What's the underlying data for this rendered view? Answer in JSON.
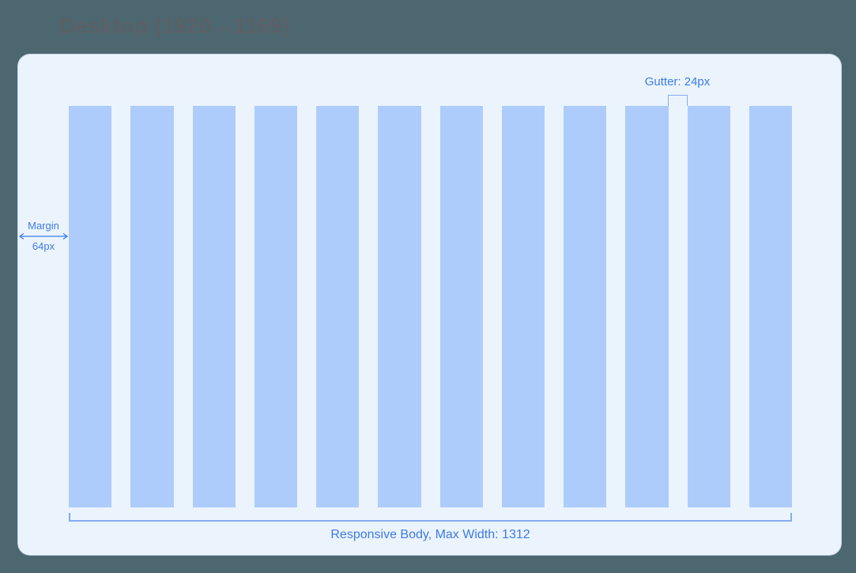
{
  "page": {
    "frame_title": "Desktop (1920↔1169)"
  },
  "grid": {
    "column_count": 12,
    "gutter_label": "Gutter: 24px",
    "margin_label": "Margin",
    "margin_value": "64px",
    "body_label": "Responsive Body, Max Width: 1312"
  },
  "colors": {
    "page_background": "#4D6771",
    "card_background": "#EBF4FD",
    "column_fill": "#AECCFB",
    "label_blue": "#3D7AE5",
    "bracket_blue": "#84ABEF",
    "frame_title_color": "#5A6066"
  }
}
